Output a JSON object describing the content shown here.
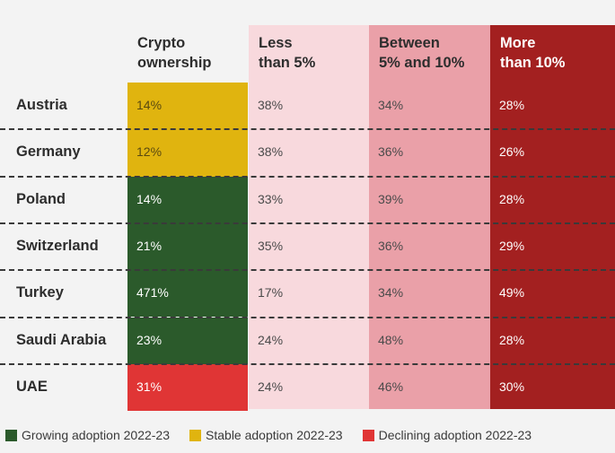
{
  "chart_data": {
    "type": "table",
    "columns": [
      "Crypto\nownership",
      "Less\nthan 5%",
      "Between\n5% and 10%",
      "More\nthan 10%"
    ],
    "rows": [
      {
        "country": "Austria",
        "ownership": "14%",
        "adoption": "stable",
        "less5": "38%",
        "between": "34%",
        "more10": "28%"
      },
      {
        "country": "Germany",
        "ownership": "12%",
        "adoption": "stable",
        "less5": "38%",
        "between": "36%",
        "more10": "26%"
      },
      {
        "country": "Poland",
        "ownership": "14%",
        "adoption": "growing",
        "less5": "33%",
        "between": "39%",
        "more10": "28%"
      },
      {
        "country": "Switzerland",
        "ownership": "21%",
        "adoption": "growing",
        "less5": "35%",
        "between": "36%",
        "more10": "29%"
      },
      {
        "country": "Turkey",
        "ownership": "471%",
        "adoption": "growing",
        "less5": "17%",
        "between": "34%",
        "more10": "49%"
      },
      {
        "country": "Saudi Arabia",
        "ownership": "23%",
        "adoption": "growing",
        "less5": "24%",
        "between": "48%",
        "more10": "28%"
      },
      {
        "country": "UAE",
        "ownership": "31%",
        "adoption": "declining",
        "less5": "24%",
        "between": "46%",
        "more10": "30%"
      }
    ],
    "legend": [
      {
        "key": "growing",
        "label": "Growing adoption 2022-23",
        "color": "#2b5a2b"
      },
      {
        "key": "stable",
        "label": "Stable adoption 2022-23",
        "color": "#e0b40f"
      },
      {
        "key": "declining",
        "label": "Declining adoption 2022-23",
        "color": "#e03535"
      }
    ],
    "column_colors": [
      "#f3f3f3",
      "#f8d9dd",
      "#eaa0a8",
      "#a32020"
    ],
    "text_colors": {
      "dark": "#4a4a4a",
      "light": "#ffffff",
      "header_light": "#ffffff",
      "header_dark": "#2d2d2d"
    },
    "grid": false,
    "legend_position": "bottom"
  }
}
